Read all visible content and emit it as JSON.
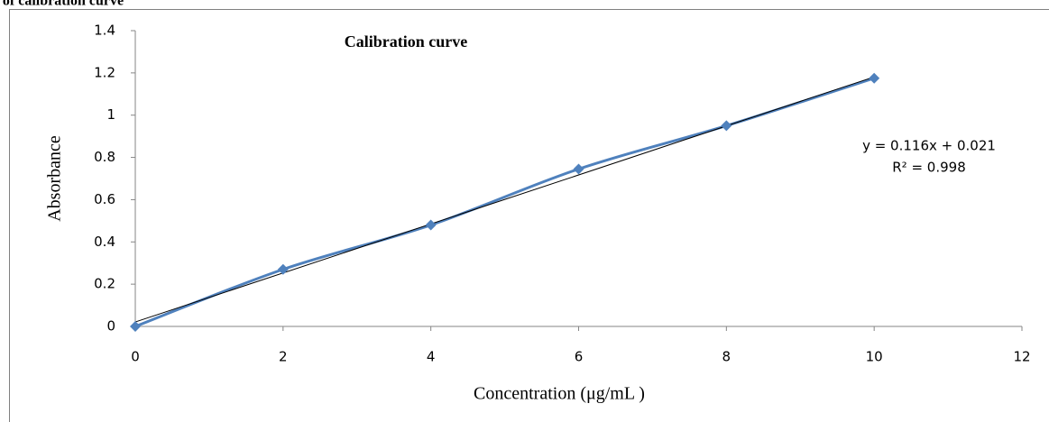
{
  "header": "n of calibration curve",
  "chart_data": {
    "type": "scatter",
    "title": "Calibration curve",
    "x_label": "Concentration (μg/mL )",
    "y_label": "Absorbance",
    "series": [
      {
        "name": "Absorbance",
        "color": "#4f81bd",
        "x": [
          0,
          2,
          4,
          6,
          8,
          10
        ],
        "values": [
          0,
          0.27,
          0.48,
          0.745,
          0.95,
          1.175
        ]
      }
    ],
    "trendline": {
      "slope": 0.116,
      "intercept": 0.021,
      "color": "#000000",
      "equation": "y = 0.116x + 0.021",
      "r_squared_label": "R² = 0.998"
    },
    "xlim": [
      0,
      12
    ],
    "xticks": [
      0,
      2,
      4,
      6,
      8,
      10,
      12
    ],
    "ylim": [
      0,
      1.4
    ],
    "yticks": [
      0,
      0.2,
      0.4,
      0.6,
      0.8,
      1,
      1.2,
      1.4
    ],
    "grid": false
  }
}
